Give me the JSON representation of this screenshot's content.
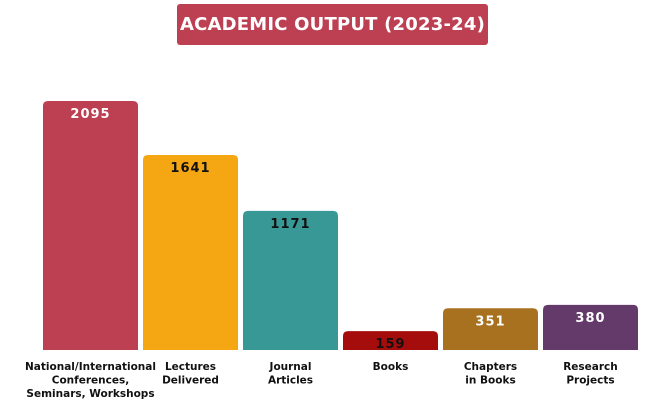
{
  "chart_data": {
    "type": "bar",
    "title": "ACADEMIC OUTPUT (2023-24)",
    "categories": [
      [
        "National/International",
        "Conferences,",
        "Seminars, Workshops"
      ],
      [
        "Lectures",
        "Delivered"
      ],
      [
        "Journal",
        "Articles"
      ],
      [
        "Books"
      ],
      [
        "Chapters",
        "in Books"
      ],
      [
        "Research",
        "Projects"
      ]
    ],
    "values": [
      2095,
      1641,
      1171,
      159,
      351,
      380
    ],
    "bar_colors": [
      "#bd3f52",
      "#f4a712",
      "#379896",
      "#a50d0d",
      "#a7711f",
      "#633a6a"
    ],
    "value_label_colors": [
      "#ffffff",
      "#111111",
      "#111111",
      "#111111",
      "#ffffff",
      "#ffffff"
    ],
    "title_color": "#bd3f52",
    "ylim": [
      0,
      2095
    ],
    "grid": false,
    "legend": "none"
  }
}
